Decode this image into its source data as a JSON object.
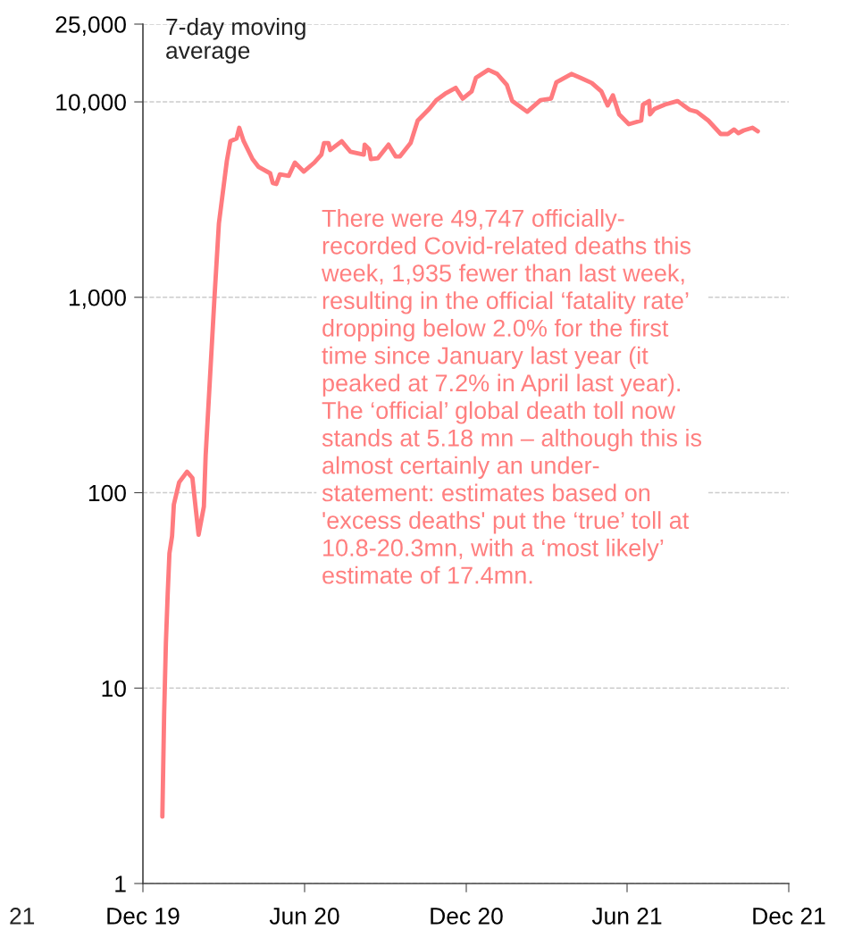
{
  "chart_data": {
    "type": "line",
    "x": [
      "2019-12-23",
      "2019-12-25",
      "2019-12-27",
      "2019-12-29",
      "2019-12-31",
      "2020-01-03",
      "2020-01-05",
      "2020-01-11",
      "2020-01-20",
      "2020-01-26",
      "2020-02-02",
      "2020-02-08",
      "2020-02-10",
      "2020-02-20",
      "2020-02-25",
      "2020-03-05",
      "2020-03-09",
      "2020-03-16",
      "2020-03-19",
      "2020-03-24",
      "2020-04-03",
      "2020-04-10",
      "2020-04-23",
      "2020-04-26",
      "2020-04-30",
      "2020-05-04",
      "2020-05-14",
      "2020-05-21",
      "2020-05-31",
      "2020-06-12",
      "2020-06-20",
      "2020-06-23",
      "2020-06-28",
      "2020-06-30",
      "2020-07-13",
      "2020-07-23",
      "2020-08-07",
      "2020-08-08",
      "2020-08-13",
      "2020-08-15",
      "2020-08-23",
      "2020-09-04",
      "2020-09-12",
      "2020-09-17",
      "2020-09-29",
      "2020-10-07",
      "2020-10-20",
      "2020-10-28",
      "2020-11-07",
      "2020-11-19",
      "2020-11-27",
      "2020-12-07",
      "2020-12-12",
      "2020-12-26",
      "2021-01-05",
      "2021-01-16",
      "2021-01-22",
      "2021-02-08",
      "2021-02-23",
      "2021-03-07",
      "2021-03-13",
      "2021-03-30",
      "2021-04-09",
      "2021-04-22",
      "2021-05-03",
      "2021-05-10",
      "2021-05-16",
      "2021-05-23",
      "2021-06-03",
      "2021-06-17",
      "2021-06-19",
      "2021-06-26",
      "2021-06-27",
      "2021-07-02",
      "2021-07-14",
      "2021-07-28",
      "2021-08-11",
      "2021-08-19",
      "2021-09-01",
      "2021-09-15",
      "2021-09-23",
      "2021-09-30",
      "2021-10-05",
      "2021-10-11",
      "2021-10-21",
      "2021-10-27"
    ],
    "series": [
      {
        "color": "#ff7b7f",
        "values": [
          2.2,
          7.3,
          17,
          30,
          49,
          60,
          87,
          113,
          128,
          119,
          61,
          85,
          155,
          1000,
          2390,
          4990,
          6300,
          6500,
          7370,
          6300,
          5100,
          4640,
          4310,
          3840,
          3800,
          4260,
          4180,
          4890,
          4400,
          4890,
          5370,
          6160,
          6160,
          5670,
          6290,
          5550,
          5370,
          6040,
          5730,
          5100,
          5150,
          6040,
          5260,
          5260,
          6160,
          8020,
          9190,
          10200,
          11000,
          11800,
          10400,
          11300,
          13300,
          14600,
          13900,
          12200,
          10100,
          8900,
          10200,
          10400,
          12600,
          13900,
          13300,
          12500,
          11300,
          9590,
          10800,
          8630,
          7690,
          8020,
          9690,
          10100,
          8630,
          9190,
          9690,
          10100,
          9100,
          8900,
          8020,
          6850,
          6850,
          7220,
          6920,
          7140,
          7370,
          7070
        ]
      }
    ],
    "log": "y",
    "xlim": [
      "2019-12-01",
      "2021-12-01"
    ],
    "xticks": [
      {
        "value": "2019-12-01",
        "label": "Dec 19"
      },
      {
        "value": "2020-06-01",
        "label": "Jun 20"
      },
      {
        "value": "2020-12-01",
        "label": "Dec 20"
      },
      {
        "value": "2021-06-01",
        "label": "Jun 21"
      },
      {
        "value": "2021-12-01",
        "label": "Dec 21"
      }
    ],
    "ylim": [
      1,
      25000
    ],
    "yticks": [
      {
        "value": 1,
        "label": "1"
      },
      {
        "value": 10,
        "label": "10"
      },
      {
        "value": 100,
        "label": "100"
      },
      {
        "value": 1000,
        "label": "1,000"
      },
      {
        "value": 10000,
        "label": "10,000"
      },
      {
        "value": 25000,
        "label": "25,000"
      }
    ],
    "grid": "y",
    "line_style": "solid",
    "annotations": [
      "7-day moving\naverage",
      "There were 49,747 officially-\nrecorded Covid-related deaths this\nweek, 1,935 fewer than last week,\nresulting in the official ‘fatality rate’\ndropping below 2.0% for the first\ntime since January last year (it\npeaked at 7.2% in April last year).\nThe ‘official’ global death toll now\nstands at 5.18 mn – although this is\nalmost certainly an under-\nstatement: estimates based on\n'excess deaths' put the ‘true’ toll at\n10.8-20.3mn, with a ‘most likely’\nestimate of 17.4mn.",
      "21"
    ]
  }
}
